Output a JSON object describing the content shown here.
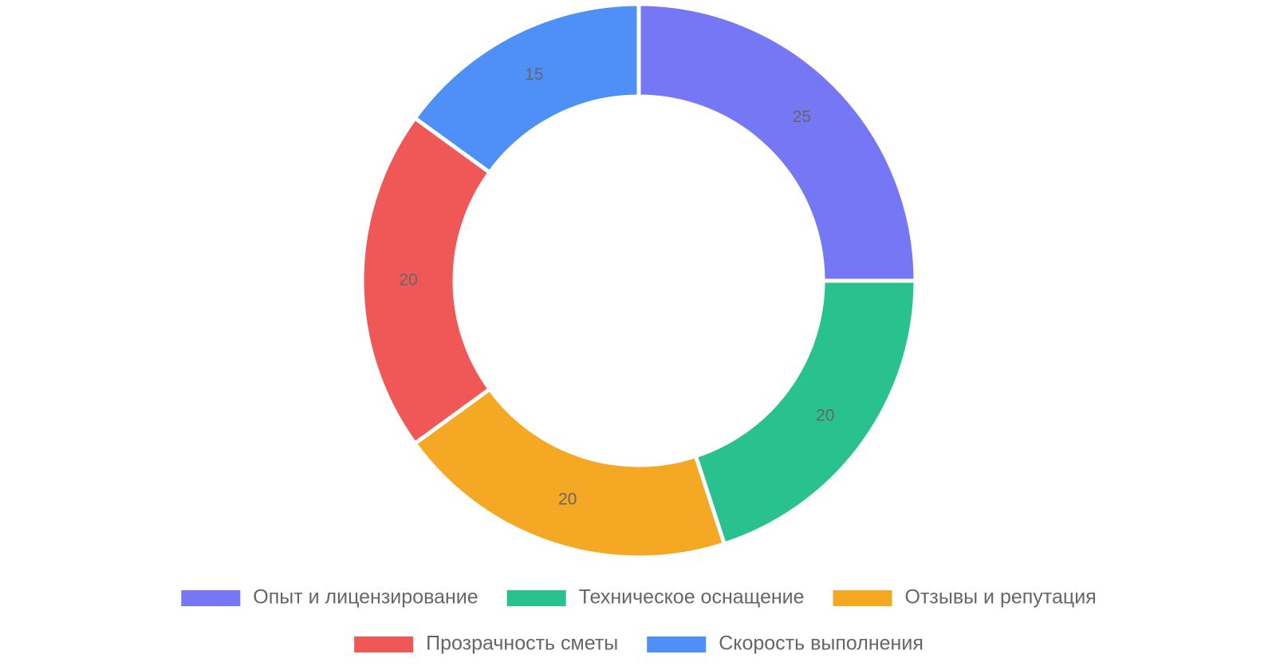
{
  "chart_data": {
    "type": "pie",
    "donut": true,
    "categories": [
      "Опыт и лицензирование",
      "Техническое оснащение",
      "Отзывы и репутация",
      "Прозрачность сметы",
      "Скорость выполнения"
    ],
    "values": [
      25,
      20,
      20,
      20,
      15
    ],
    "colors": [
      "#7577f4",
      "#29c28f",
      "#f5a824",
      "#f05858",
      "#4f8ff8"
    ],
    "legend": "bottom"
  }
}
